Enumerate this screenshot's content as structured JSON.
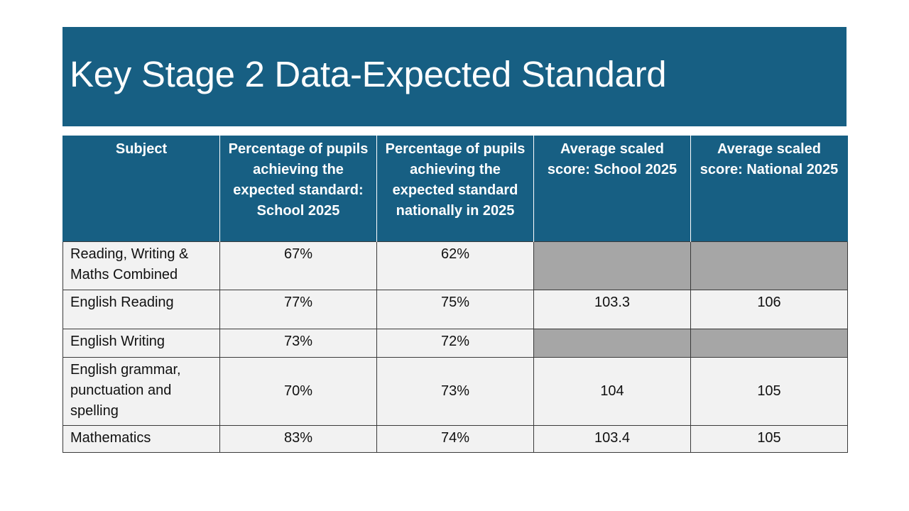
{
  "title": "Key Stage 2 Data-Expected Standard",
  "colors": {
    "header_blue": "#175f83",
    "cell_light": "#f2f2f2",
    "cell_grey": "#a6a6a6"
  },
  "table": {
    "headers": [
      "Subject",
      "Percentage of pupils achieving the expected standard: School 2025",
      "Percentage of pupils achieving the expected standard nationally in 2025",
      "Average scaled score: School 2025",
      "Average scaled score: National 2025"
    ],
    "rows": [
      {
        "subject": "Reading, Writing & Maths Combined",
        "school_pct": "67%",
        "national_pct": "62%",
        "school_score": "",
        "national_score": ""
      },
      {
        "subject": "English Reading",
        "school_pct": "77%",
        "national_pct": "75%",
        "school_score": "103.3",
        "national_score": "106"
      },
      {
        "subject": "English Writing",
        "school_pct": "73%",
        "national_pct": "72%",
        "school_score": "",
        "national_score": ""
      },
      {
        "subject": "English grammar, punctuation and spelling",
        "school_pct": "70%",
        "national_pct": "73%",
        "school_score": "104",
        "national_score": "105"
      },
      {
        "subject": "Mathematics",
        "school_pct": "83%",
        "national_pct": "74%",
        "school_score": "103.4",
        "national_score": "105"
      }
    ]
  }
}
